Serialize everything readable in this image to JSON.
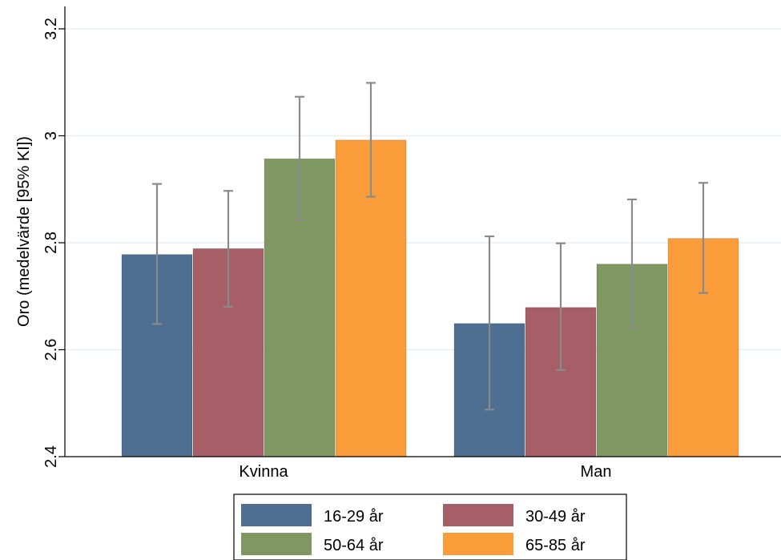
{
  "chart_data": {
    "type": "bar",
    "categories": [
      "Kvinna",
      "Man"
    ],
    "series": [
      {
        "name": "16-29 år",
        "color": "#4e6e92",
        "values": [
          2.778,
          2.649
        ],
        "ci_low": [
          2.648,
          2.488
        ],
        "ci_high": [
          2.91,
          2.812
        ]
      },
      {
        "name": "30-49 år",
        "color": "#a65f66",
        "values": [
          2.789,
          2.679
        ],
        "ci_low": [
          2.68,
          2.562
        ],
        "ci_high": [
          2.897,
          2.799
        ]
      },
      {
        "name": "50-64 år",
        "color": "#7f9862",
        "values": [
          2.957,
          2.76
        ],
        "ci_low": [
          2.842,
          2.64
        ],
        "ci_high": [
          3.073,
          2.881
        ]
      },
      {
        "name": "65-85 år",
        "color": "#fb9c3a",
        "values": [
          2.992,
          2.808
        ],
        "ci_low": [
          2.886,
          2.706
        ],
        "ci_high": [
          3.099,
          2.912
        ]
      }
    ],
    "ylabel": "Oro (medelvärde [95% KI])",
    "xlabel": "",
    "ylim": [
      2.4,
      3.2
    ],
    "yticks": [
      "2.4",
      "2.6",
      "2.8",
      "3",
      "3.2"
    ],
    "grid": true,
    "legend_position": "bottom"
  }
}
